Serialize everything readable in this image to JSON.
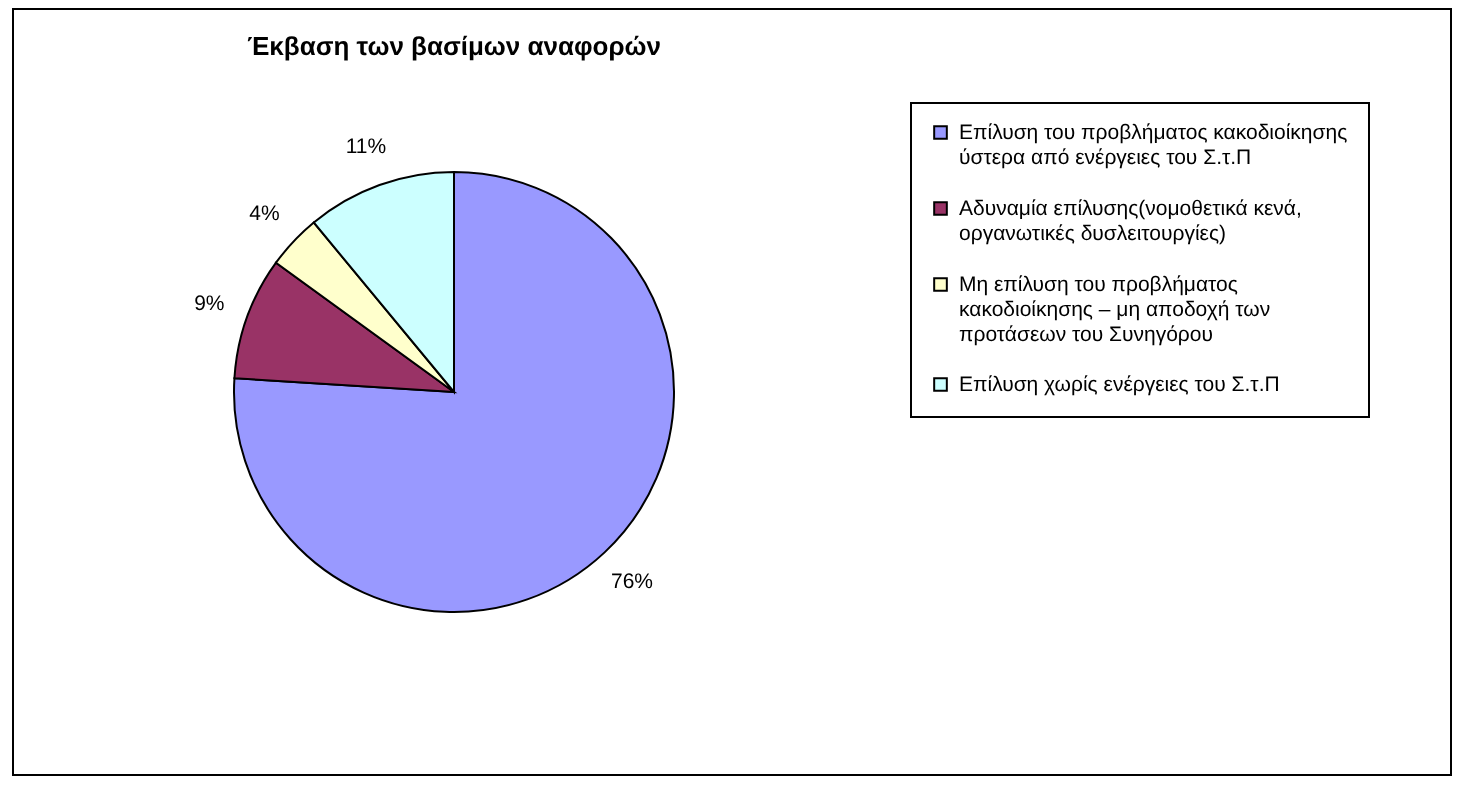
{
  "chart_data": {
    "type": "pie",
    "title": "Έκβαση των βασίμων αναφορών",
    "categories": [
      "Επίλυση του προβλήματος κακοδιοίκησης ύστερα από ενέργειες του Σ.τ.Π",
      "Αδυναμία επίλυσης(νομοθετικά κενά, οργανωτικές δυσλειτουργίες)",
      "Μη επίλυση του προβλήματος κακοδιοίκησης – μη αποδοχή των προτάσεων του Συνηγόρου",
      "Επίλυση χωρίς ενέργειες του Σ.τ.Π"
    ],
    "values": [
      76,
      9,
      4,
      11
    ],
    "colors": [
      "#9999ff",
      "#993366",
      "#ffffcc",
      "#ccffff"
    ],
    "value_labels": [
      "76%",
      "9%",
      "4%",
      "11%"
    ],
    "legend": "right"
  }
}
